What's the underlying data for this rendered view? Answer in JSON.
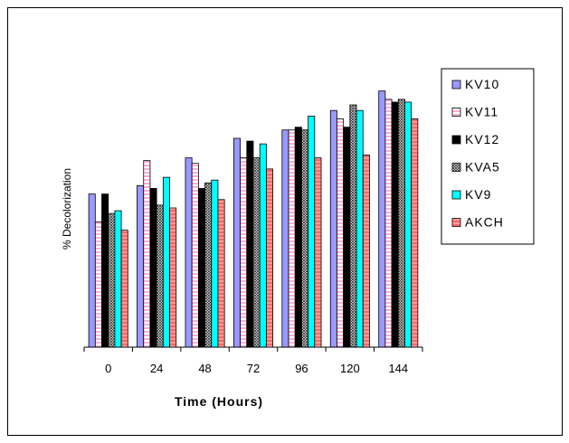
{
  "chart_data": {
    "type": "bar",
    "title": "",
    "xlabel": "Time (Hours)",
    "ylabel": "% Decolorization",
    "categories": [
      "0",
      "24",
      "48",
      "72",
      "96",
      "120",
      "144"
    ],
    "ylim": [
      0,
      100
    ],
    "grid": false,
    "legend_position": "right",
    "series": [
      {
        "name": "KV10",
        "color": "#9999ff",
        "values": [
          55,
          58,
          68,
          75,
          78,
          85,
          92
        ]
      },
      {
        "name": "KV11",
        "color": "#ff99cc",
        "values": [
          45,
          67,
          66,
          68,
          78,
          82,
          89
        ]
      },
      {
        "name": "KV12",
        "color": "#000000",
        "values": [
          55,
          57,
          57,
          74,
          79,
          79,
          88
        ]
      },
      {
        "name": "KVA5",
        "color": "#333333",
        "values": [
          48,
          51,
          59,
          68,
          78,
          87,
          89
        ]
      },
      {
        "name": "KV9",
        "color": "#00ffff",
        "values": [
          49,
          61,
          60,
          73,
          83,
          85,
          88
        ]
      },
      {
        "name": "AKCH",
        "color": "#ff6666",
        "values": [
          42,
          50,
          53,
          64,
          68,
          69,
          82
        ]
      }
    ]
  }
}
